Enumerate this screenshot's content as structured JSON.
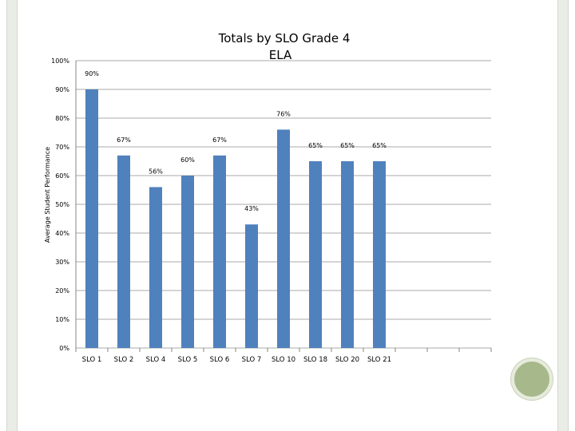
{
  "chart_data": {
    "type": "bar",
    "title_lines": [
      "Totals by SLO Grade 4",
      "ELA"
    ],
    "ylabel": "Average Student Performance",
    "xlabel": "",
    "categories": [
      "SLO 1",
      "SLO 2",
      "SLO 4",
      "SLO 5",
      "SLO 6",
      "SLO 7",
      "SLO 10",
      "SLO 18",
      "SLO 20",
      "SLO 21",
      "",
      "",
      ""
    ],
    "values": [
      90,
      67,
      56,
      60,
      67,
      43,
      76,
      65,
      65,
      65,
      null,
      null,
      null
    ],
    "data_labels": [
      "90%",
      "67%",
      "56%",
      "60%",
      "67%",
      "43%",
      "76%",
      "65%",
      "65%",
      "65%",
      "",
      "",
      ""
    ],
    "ylim": [
      0,
      100
    ],
    "yticks": [
      0,
      10,
      20,
      30,
      40,
      50,
      60,
      70,
      80,
      90,
      100
    ],
    "ytick_labels": [
      "0%",
      "10%",
      "20%",
      "30%",
      "40%",
      "50%",
      "60%",
      "70%",
      "80%",
      "90%",
      "100%"
    ],
    "grid": true,
    "legend": "none",
    "colors": {
      "bar": "#4f81bd",
      "grid": "#8c8c8c",
      "axis": "#868686"
    }
  }
}
